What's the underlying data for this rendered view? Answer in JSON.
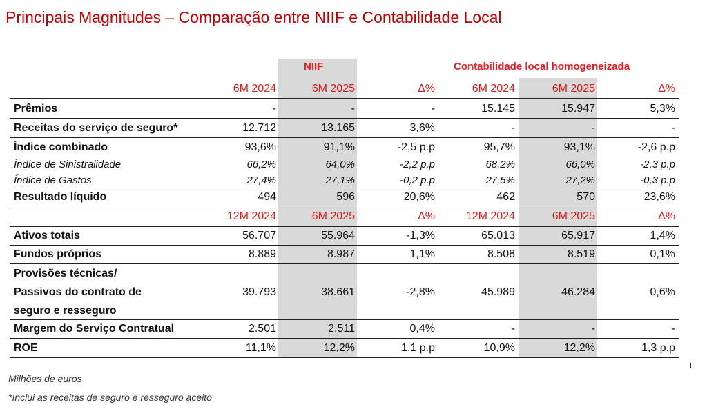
{
  "title": "Principais Magnitudes – Comparação entre NIIF e Contabilidade Local",
  "groups": {
    "niif": "NIIF",
    "local": "Contabilidade local homogeneizada"
  },
  "header1": [
    "6M 2024",
    "6M 2025",
    "Δ%",
    "6M 2024",
    "6M 2025",
    "Δ%"
  ],
  "header2": [
    "12M 2024",
    "6M 2025",
    "Δ%",
    "12M 2024",
    "6M 2025",
    "Δ%"
  ],
  "rows": [
    {
      "label": "Prêmios",
      "values": [
        "-",
        "-",
        "-",
        "15.145",
        "15.947",
        "5,3%"
      ]
    },
    {
      "label": "Receitas do serviço de seguro*",
      "values": [
        "12.712",
        "13.165",
        "3,6%",
        "-",
        "-",
        "-"
      ]
    },
    {
      "label": "Índice combinado",
      "values": [
        "93,6%",
        "91,1%",
        "-2,5 p.p",
        "95,7%",
        "93,1%",
        "-2,6 p.p"
      ]
    },
    {
      "label": "Índice de Sinistralidade",
      "values": [
        "66,2%",
        "64,0%",
        "-2,2 p.p",
        "68,2%",
        "66,0%",
        "-2,3 p.p"
      ]
    },
    {
      "label": "Índice de Gastos",
      "values": [
        "27,4%",
        "27,1%",
        "-0,2 p.p",
        "27,5%",
        "27,2%",
        "-0,3 p.p"
      ]
    },
    {
      "label": "Resultado líquido",
      "values": [
        "494",
        "596",
        "20,6%",
        "462",
        "570",
        "23,6%"
      ]
    },
    {
      "label": "Ativos totais",
      "values": [
        "56.707",
        "55.964",
        "-1,3%",
        "65.013",
        "65.917",
        "1,4%"
      ]
    },
    {
      "label": "Fundos próprios",
      "values": [
        "8.889",
        "8.987",
        "1,1%",
        "8.508",
        "8.519",
        "0,1%"
      ]
    },
    {
      "label_lines": [
        "Provisões técnicas/",
        "Passivos do contrato de",
        "seguro e resseguro"
      ],
      "values": [
        "39.793",
        "38.661",
        "-2,8%",
        "45.989",
        "46.284",
        "0,6%"
      ]
    },
    {
      "label": "Margem do Serviço Contratual",
      "values": [
        "2.501",
        "2.511",
        "0,4%",
        "-",
        "-",
        "-"
      ]
    },
    {
      "label": "ROE",
      "values": [
        "11,1%",
        "12,2%",
        "1,1 p.p",
        "10,9%",
        "12,2%",
        "1,3 p.p"
      ]
    }
  ],
  "footnotes": [
    "Milhões de euros",
    "*Inclui as receitas de seguro e resseguro aceito"
  ]
}
